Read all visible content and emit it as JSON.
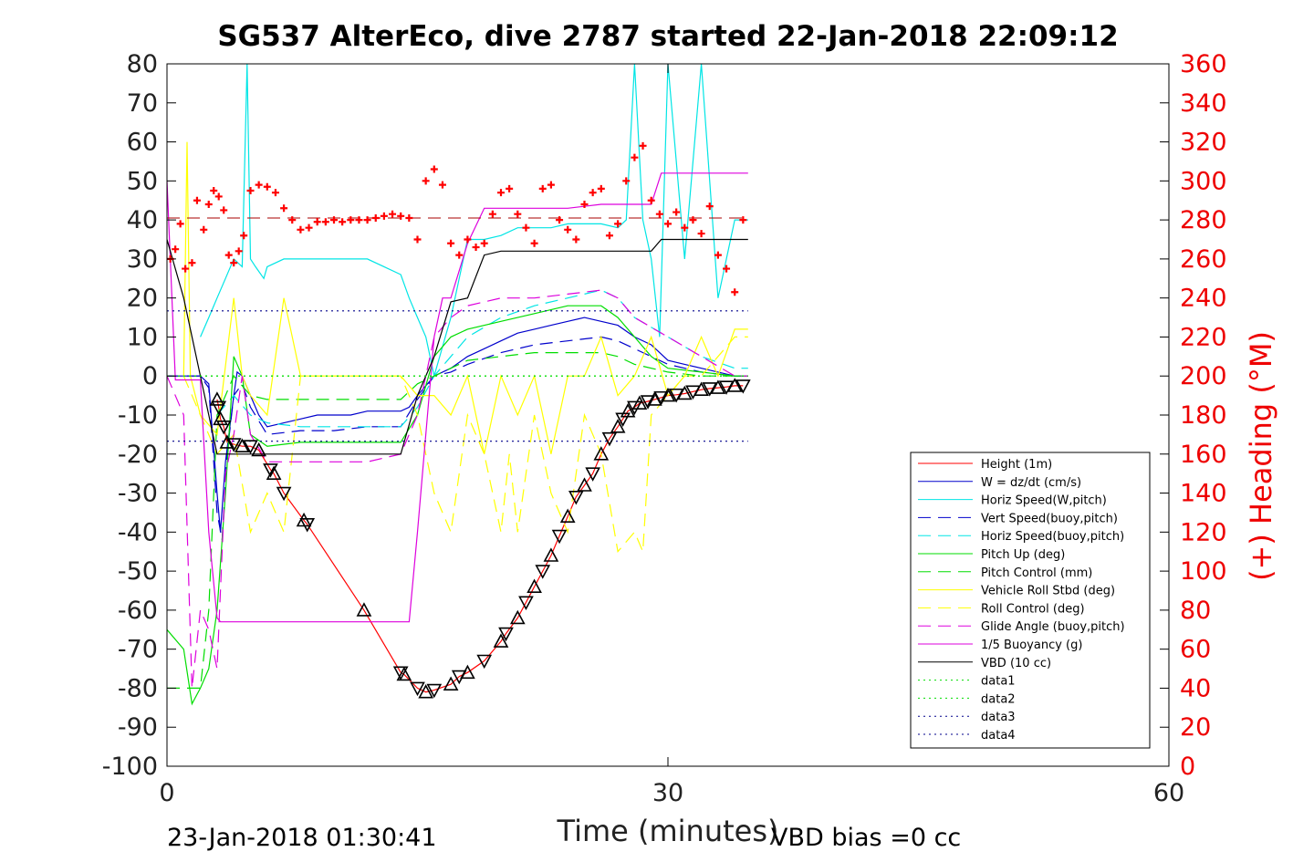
{
  "chart_data": {
    "type": "line",
    "title": "SG537 AlterEco, dive 2787 started 22-Jan-2018 22:09:12",
    "xlabel": "Time (minutes)",
    "ylabel": "",
    "ylabel_right": "(+) Heading (°M)",
    "xlim": [
      0,
      60
    ],
    "ylim": [
      -100,
      80
    ],
    "ylim_right": [
      0,
      360
    ],
    "x_ticks": [
      "0",
      "30",
      "60"
    ],
    "y_ticks": [
      "80",
      "70",
      "60",
      "50",
      "40",
      "30",
      "20",
      "10",
      "0",
      "-10",
      "-20",
      "-30",
      "-40",
      "-50",
      "-60",
      "-70",
      "-80",
      "-90",
      "-100"
    ],
    "y_right_ticks": [
      "360",
      "340",
      "320",
      "300",
      "280",
      "260",
      "240",
      "220",
      "200",
      "180",
      "160",
      "140",
      "120",
      "100",
      "80",
      "60",
      "40",
      "20",
      "0"
    ],
    "legend_position": "bottom-right",
    "grid": false,
    "footer_left": "23-Jan-2018 01:30:41",
    "footer_right": "VBD bias =0 cc",
    "series": [
      {
        "name": "Height (1m)",
        "color": "#ff0000",
        "style": "solid",
        "marker": "triangle",
        "x": [
          3.0,
          3.1,
          3.2,
          3.4,
          3.6,
          4.0,
          4.5,
          5.0,
          5.5,
          6.2,
          6.4,
          7.0,
          8.2,
          8.4,
          11.8,
          14.0,
          14.2,
          15.0,
          15.5,
          16.0,
          17.0,
          17.5,
          18.0,
          19.0,
          20.0,
          20.3,
          21.0,
          21.5,
          22.0,
          22.5,
          23.0,
          23.5,
          24.0,
          24.5,
          25.0,
          25.5,
          26.0,
          26.5,
          27.0,
          27.3,
          27.6,
          28.0,
          28.3,
          28.8,
          29.2,
          29.6,
          30.0,
          30.5,
          31.0,
          31.5,
          32.0,
          32.5,
          33.0,
          33.5,
          34.0,
          34.5
        ],
        "y": [
          -6,
          -8,
          -11,
          -13,
          -17,
          -17.5,
          -18,
          -18,
          -19,
          -24,
          -25,
          -30,
          -37,
          -38,
          -60,
          -76,
          -76.5,
          -80,
          -81,
          -80.5,
          -79,
          -77,
          -76,
          -73,
          -68,
          -66,
          -62,
          -58,
          -54,
          -50,
          -46,
          -41,
          -36,
          -31,
          -28,
          -25,
          -20,
          -16,
          -13,
          -11,
          -9,
          -8,
          -7,
          -6.5,
          -6,
          -5.5,
          -5,
          -4.8,
          -4.5,
          -4,
          -3.5,
          -3.2,
          -3,
          -2.8,
          -2.5,
          -2.5
        ]
      },
      {
        "name": "W = dz/dt (cm/s)",
        "color": "#0000cc",
        "style": "solid",
        "x": [
          0,
          1,
          2,
          2.5,
          3,
          3.2,
          3.5,
          4,
          4.2,
          4.5,
          5,
          5.5,
          6,
          7,
          8,
          9,
          10,
          11,
          12,
          13,
          14,
          14.5,
          15,
          16,
          17,
          18,
          19,
          20,
          21,
          22,
          23,
          24,
          25,
          26,
          27,
          28,
          29,
          30,
          31,
          32,
          33,
          34,
          34.8
        ],
        "y": [
          0,
          0,
          0,
          -2,
          -30,
          -40,
          -22,
          -5,
          1,
          0,
          -5,
          -10,
          -13,
          -12,
          -11,
          -10,
          -10,
          -10,
          -9,
          -9,
          -9,
          -8,
          -5,
          0,
          2,
          5,
          7,
          9,
          11,
          12,
          13,
          14,
          15,
          14,
          13,
          10,
          8,
          4,
          3,
          2,
          1,
          0,
          0
        ]
      },
      {
        "name": "Horiz Speed(W,pitch)",
        "color": "#00e5e5",
        "style": "solid",
        "x": [
          2,
          2.5,
          3,
          3.5,
          4,
          4.5,
          4.8,
          5,
          5.3,
          5.8,
          6,
          7,
          8,
          9,
          10,
          11,
          12,
          13,
          14,
          14.5,
          15,
          15.5,
          16,
          17,
          18,
          19,
          20,
          21,
          22,
          23,
          24,
          25,
          26,
          27,
          27.5,
          28,
          28.5,
          29,
          29.5,
          30,
          31,
          32,
          33,
          34,
          34.8
        ],
        "y": [
          10,
          15,
          20,
          25,
          30,
          28,
          80,
          30,
          28,
          25,
          28,
          30,
          30,
          30,
          30,
          30,
          30,
          28,
          26,
          20,
          15,
          10,
          0,
          15,
          35,
          35,
          36,
          38,
          38,
          38,
          39,
          39,
          39,
          38,
          40,
          80,
          40,
          30,
          10,
          80,
          30,
          80,
          20,
          40,
          40
        ]
      },
      {
        "name": "Vert Speed(buoy,pitch)",
        "color": "#0000cc",
        "style": "dashed",
        "x": [
          0,
          2,
          2.5,
          3,
          3.3,
          3.6,
          4,
          4.5,
          5,
          6,
          8,
          10,
          12,
          14,
          15,
          16,
          17,
          18,
          20,
          22,
          24,
          26,
          27,
          28,
          30,
          32,
          34,
          34.8
        ],
        "y": [
          0,
          0,
          -3,
          -35,
          -42,
          -20,
          -5,
          -2,
          -8,
          -15,
          -14,
          -14,
          -13,
          -13,
          -6,
          0,
          1,
          3,
          6,
          8,
          9,
          10,
          9,
          7,
          3,
          1,
          0,
          0
        ]
      },
      {
        "name": "Horiz Speed(buoy,pitch)",
        "color": "#00e5e5",
        "style": "dashed",
        "x": [
          3,
          4,
          5,
          6,
          8,
          10,
          12,
          14,
          15,
          16,
          17,
          18,
          20,
          22,
          24,
          26,
          27,
          28,
          30,
          32,
          34,
          34.8
        ],
        "y": [
          -10,
          -5,
          -10,
          -12,
          -13,
          -13,
          -13,
          -13,
          -8,
          0,
          5,
          10,
          15,
          18,
          20,
          22,
          20,
          15,
          10,
          5,
          2,
          2
        ]
      },
      {
        "name": "Pitch Up (deg)",
        "color": "#00dd00",
        "style": "solid",
        "x": [
          0,
          1,
          1.5,
          2,
          2.5,
          3,
          3.5,
          4,
          4.5,
          5,
          6,
          8,
          10,
          12,
          14,
          15,
          16,
          17,
          18,
          20,
          22,
          24,
          26,
          27,
          28,
          29,
          30,
          32,
          34,
          34.8
        ],
        "y": [
          -65,
          -70,
          -84,
          -80,
          -75,
          -60,
          -30,
          5,
          0,
          -15,
          -18,
          -17,
          -17,
          -17,
          -17,
          -10,
          5,
          10,
          12,
          14,
          16,
          18,
          18,
          15,
          10,
          5,
          2,
          1,
          0,
          0
        ]
      },
      {
        "name": "Pitch Control (mm)",
        "color": "#00dd00",
        "style": "dashed",
        "x": [
          0,
          2,
          2.5,
          3,
          3.5,
          4,
          5,
          6,
          8,
          10,
          12,
          14,
          15,
          16,
          17,
          18,
          20,
          22,
          24,
          26,
          27,
          28,
          30,
          32,
          34,
          34.8
        ],
        "y": [
          -80,
          -80,
          -60,
          -10,
          -5,
          0,
          -5,
          -6,
          -6,
          -6,
          -6,
          -6,
          -2,
          0,
          2,
          4,
          5,
          6,
          6,
          6,
          5,
          3,
          1,
          0,
          0,
          0
        ]
      },
      {
        "name": "Vehicle Roll Stbd (deg)",
        "color": "#ffff00",
        "style": "solid",
        "x": [
          1,
          1.2,
          1.4,
          2,
          3,
          4,
          4.5,
          5,
          6,
          7,
          7.5,
          8,
          9,
          10,
          12,
          14,
          15,
          16,
          17,
          18,
          19,
          20,
          21,
          22,
          23,
          24,
          25,
          26,
          27,
          28,
          29,
          30,
          31,
          32,
          33,
          34,
          34.8
        ],
        "y": [
          0,
          60,
          0,
          -10,
          -15,
          20,
          0,
          -5,
          -10,
          20,
          10,
          0,
          0,
          0,
          0,
          0,
          -5,
          -5,
          -10,
          0,
          -20,
          0,
          -10,
          0,
          -20,
          0,
          0,
          10,
          -5,
          0,
          10,
          -5,
          0,
          10,
          0,
          12,
          12
        ]
      },
      {
        "name": "Roll Control (deg)",
        "color": "#ffff00",
        "style": "dashed",
        "x": [
          1,
          2,
          3,
          4,
          5,
          6,
          7,
          8,
          9,
          10,
          12,
          14,
          15,
          16,
          17,
          18,
          19,
          20,
          20.5,
          21,
          22,
          23,
          24,
          25,
          26,
          27,
          28,
          28.5,
          29,
          30,
          31,
          32,
          33,
          34,
          34.8
        ],
        "y": [
          0,
          -10,
          -20,
          -15,
          -40,
          -30,
          -40,
          0,
          0,
          0,
          0,
          0,
          -10,
          -30,
          -40,
          -10,
          -20,
          -40,
          -20,
          -40,
          -10,
          -30,
          -40,
          -10,
          -20,
          -45,
          -40,
          -45,
          -10,
          -5,
          0,
          0,
          5,
          10,
          10
        ]
      },
      {
        "name": "Glide Angle (buoy,pitch)",
        "color": "#dd00dd",
        "style": "dashed",
        "x": [
          0,
          1,
          1.5,
          2,
          2.5,
          3,
          3.5,
          4,
          4.5,
          5,
          6,
          8,
          10,
          12,
          14,
          15,
          16,
          17,
          18,
          20,
          22,
          24,
          26,
          27,
          28,
          30,
          32,
          34,
          34.8
        ],
        "y": [
          0,
          -10,
          -80,
          -60,
          -65,
          -75,
          -25,
          -15,
          0,
          -15,
          -22,
          -22,
          -22,
          -22,
          -20,
          -10,
          10,
          15,
          18,
          20,
          20,
          21,
          22,
          20,
          15,
          10,
          5,
          0,
          0
        ]
      },
      {
        "name": "1/5 Buoyancy (g)",
        "color": "#dd00dd",
        "style": "solid",
        "x": [
          0,
          0.5,
          1,
          2,
          2.5,
          3,
          3.2,
          4,
          6,
          8,
          10,
          12,
          14,
          14.5,
          15,
          16,
          16.5,
          17,
          18,
          19,
          20,
          22,
          24,
          26,
          28,
          29,
          29.6,
          30,
          32,
          34,
          34.8
        ],
        "y": [
          50,
          -1,
          -1,
          -1,
          -40,
          -62,
          -63,
          -63,
          -63,
          -63,
          -63,
          -63,
          -63,
          -63,
          -40,
          10,
          20,
          20,
          34,
          43,
          43,
          43,
          43,
          44,
          44,
          44,
          52,
          52,
          52,
          52,
          52
        ]
      },
      {
        "name": "VBD (10 cc)",
        "color": "#000000",
        "style": "solid",
        "x": [
          0,
          1,
          2,
          2.5,
          3,
          3.2,
          4,
          6,
          8,
          10,
          12,
          14,
          15,
          16,
          17,
          18,
          19,
          20,
          21,
          22,
          24,
          26,
          28,
          29,
          29.6,
          30,
          32,
          34,
          34.8
        ],
        "y": [
          35,
          20,
          0,
          -10,
          -20,
          -20,
          -20,
          -20,
          -20,
          -20,
          -20,
          -20,
          -5,
          5,
          19,
          20,
          31,
          32,
          32,
          32,
          32,
          32,
          32,
          32,
          35,
          35,
          35,
          35,
          35
        ]
      },
      {
        "name": "data1",
        "color": "#00dd00",
        "style": "dotted",
        "x": [
          0,
          34.8
        ],
        "y": [
          0,
          0
        ]
      },
      {
        "name": "data2",
        "color": "#00dd00",
        "style": "dotted",
        "x": [
          0,
          34.8
        ],
        "y": [
          0,
          0
        ]
      },
      {
        "name": "data3",
        "color": "#00008b",
        "style": "dotted",
        "x": [
          0,
          34.8
        ],
        "y": [
          16.7,
          16.7
        ]
      },
      {
        "name": "data4",
        "color": "#00008b",
        "style": "dotted",
        "x": [
          0,
          34.8
        ],
        "y": [
          -16.7,
          -16.7
        ]
      }
    ],
    "heading_series": {
      "axis": "right",
      "color": "#ff0000",
      "marker": "plus",
      "mean_line": 281,
      "x": [
        0.2,
        0.5,
        0.8,
        1.1,
        1.5,
        1.8,
        2.2,
        2.5,
        2.8,
        3.1,
        3.4,
        3.7,
        4.0,
        4.3,
        4.6,
        5.0,
        5.5,
        6.0,
        6.5,
        7.0,
        7.5,
        8.0,
        8.5,
        9.0,
        9.5,
        10.0,
        10.5,
        11.0,
        11.5,
        12.0,
        12.5,
        13.0,
        13.5,
        14.0,
        14.5,
        15.0,
        15.5,
        16.0,
        16.5,
        17.0,
        17.5,
        18.0,
        18.5,
        19.0,
        19.5,
        20.0,
        20.5,
        21.0,
        21.5,
        22.0,
        22.5,
        23.0,
        23.5,
        24.0,
        24.5,
        25.0,
        25.5,
        26.0,
        26.5,
        27.0,
        27.5,
        28.0,
        28.5,
        29.0,
        29.5,
        30.0,
        30.5,
        31.0,
        31.5,
        32.0,
        32.5,
        33.0,
        33.5,
        34.0,
        34.5
      ],
      "y": [
        260,
        265,
        278,
        255,
        258,
        290,
        275,
        288,
        295,
        292,
        285,
        262,
        258,
        264,
        272,
        295,
        298,
        297,
        294,
        286,
        280,
        275,
        276,
        279,
        279,
        280,
        279,
        280,
        280,
        280,
        281,
        282,
        283,
        282,
        281,
        270,
        300,
        306,
        298,
        268,
        262,
        270,
        266,
        268,
        283,
        294,
        296,
        283,
        276,
        268,
        296,
        298,
        280,
        275,
        270,
        288,
        294,
        296,
        272,
        278,
        300,
        312,
        318,
        290,
        283,
        278,
        284,
        276,
        280,
        273,
        287,
        262,
        255,
        243,
        280
      ]
    }
  }
}
